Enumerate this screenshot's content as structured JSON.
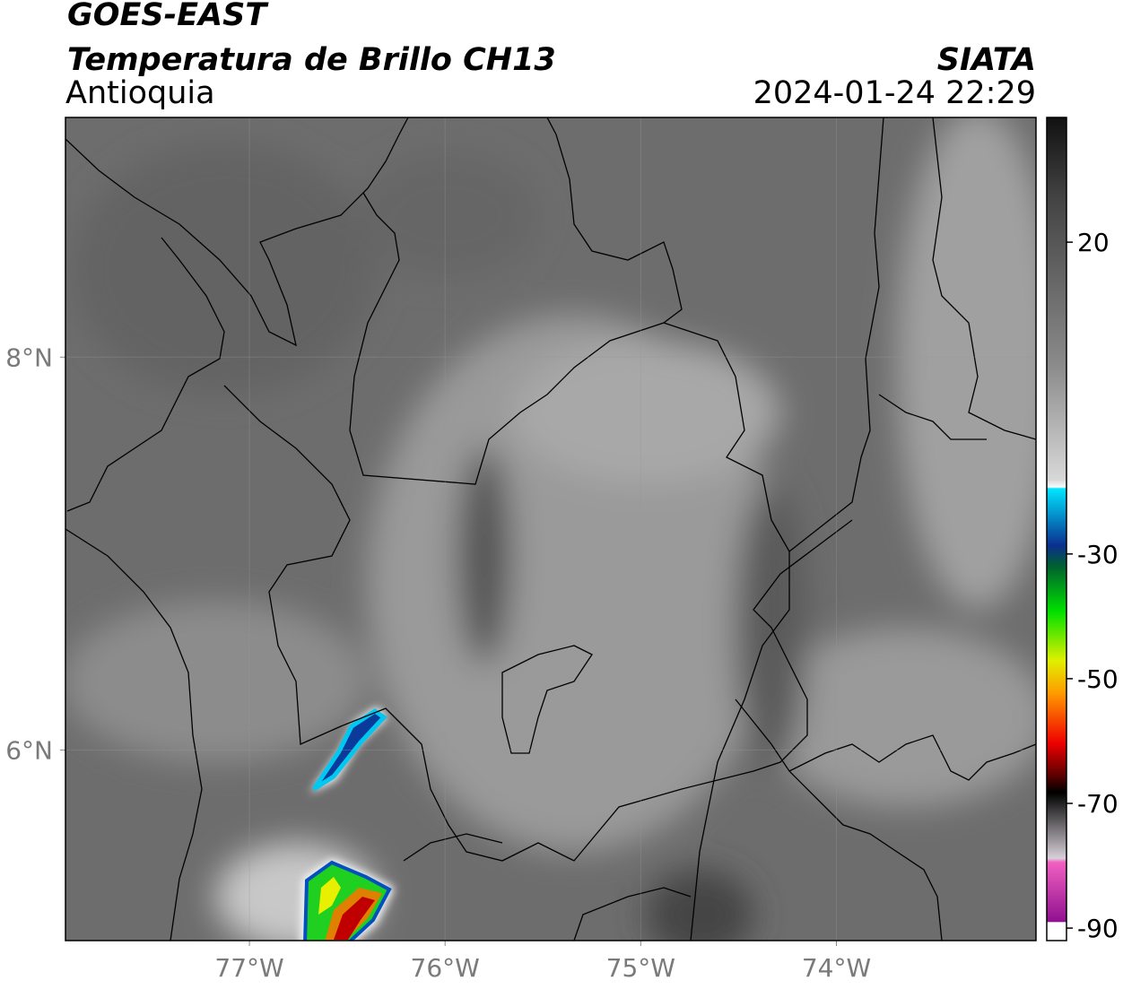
{
  "header": {
    "title": "GOES-EAST",
    "subtitle": "Temperatura de Brillo CH13",
    "region": "Antioquia",
    "source": "SIATA",
    "datetime": "2024-01-24 22:29"
  },
  "map": {
    "lonlim": [
      -77.94,
      -72.98
    ],
    "latlim": [
      5.03,
      9.22
    ],
    "lon_ticks": [
      {
        "value": -77,
        "label": "77°W"
      },
      {
        "value": -76,
        "label": "76°W"
      },
      {
        "value": -75,
        "label": "75°W"
      },
      {
        "value": -74,
        "label": "74°W"
      }
    ],
    "lat_ticks": [
      {
        "value": 8,
        "label": "8°N"
      },
      {
        "value": 6,
        "label": "6°N"
      }
    ]
  },
  "colorbar": {
    "lim": [
      -92,
      40
    ],
    "ticks": [
      20,
      -30,
      -50,
      -70,
      -90
    ]
  }
}
